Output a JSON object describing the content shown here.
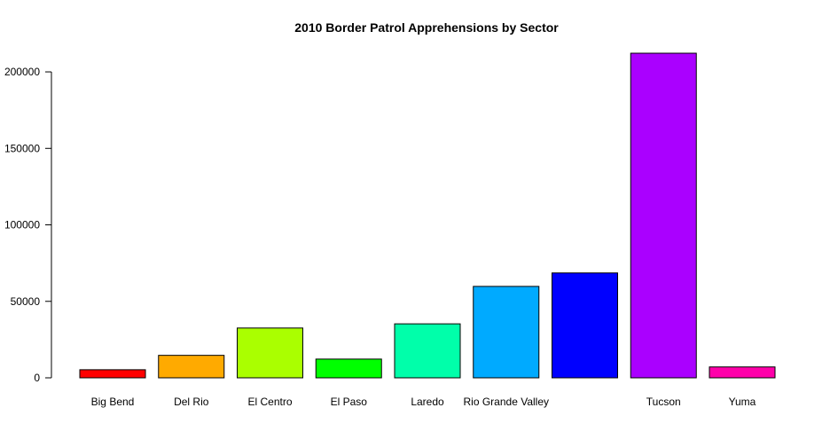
{
  "chart_data": {
    "type": "bar",
    "title": "2010 Border Patrol Apprehensions by Sector",
    "xlabel": "",
    "ylabel": "",
    "ylim": [
      0,
      212202
    ],
    "yticks": [
      0,
      50000,
      100000,
      150000,
      200000
    ],
    "ytick_labels": [
      "0",
      "50000",
      "100000",
      "150000",
      "200000"
    ],
    "grid": false,
    "legend": "none",
    "categories": [
      "Big Bend",
      "Del Rio",
      "El Centro",
      "El Paso",
      "Laredo",
      "Rio Grande Valley",
      "",
      "Tucson",
      "Yuma"
    ],
    "values": [
      5288,
      14694,
      32562,
      12251,
      35287,
      59766,
      68565,
      212202,
      7116
    ],
    "colors": [
      "#FF0000",
      "#FFAA00",
      "#AAFF00",
      "#00FF00",
      "#00FFAA",
      "#00AAFF",
      "#0000FF",
      "#AA00FF",
      "#FF00AA"
    ]
  }
}
